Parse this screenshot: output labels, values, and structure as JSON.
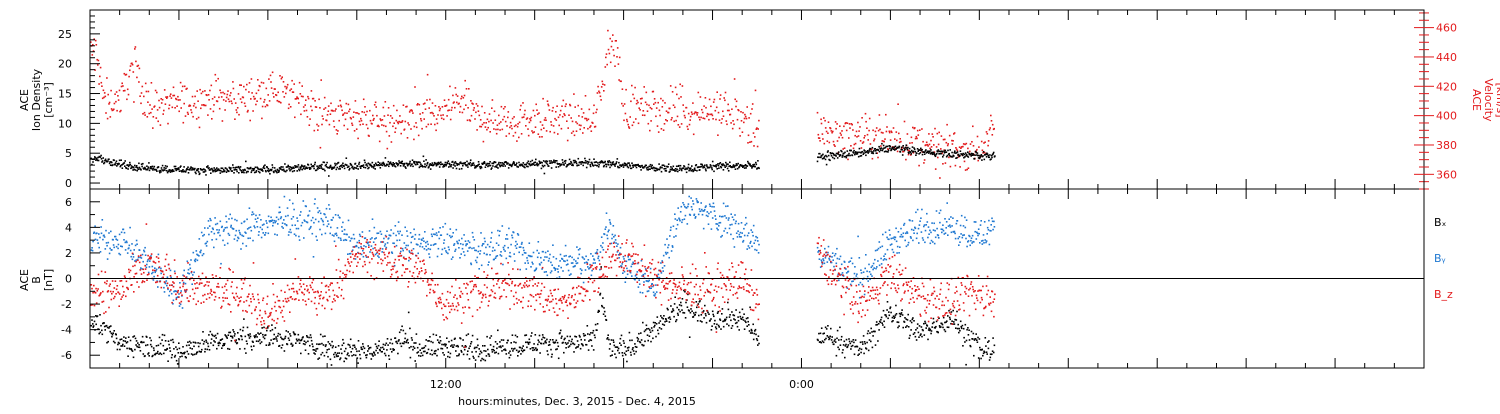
{
  "chart_data": [
    {
      "type": "scatter",
      "panel": "top",
      "ylabel_left": [
        "ACE",
        "Ion Density",
        "[cm⁻³]"
      ],
      "ylabel_right": [
        "ACE",
        "Velocity",
        "[km/s]"
      ],
      "left_axis": {
        "ylim": [
          -1,
          29
        ],
        "ticks": [
          0,
          5,
          10,
          15,
          20,
          25
        ],
        "color": "#000000"
      },
      "right_axis": {
        "ylim": [
          350,
          472
        ],
        "ticks": [
          360,
          380,
          400,
          420,
          440,
          460
        ],
        "color": "#e31a1c"
      },
      "series": [
        {
          "key": "density",
          "color": "#000000",
          "axis": "left",
          "shape": [
            [
              0,
              3.6
            ],
            [
              0.3,
              4.5
            ],
            [
              0.5,
              3.8
            ],
            [
              1,
              3.2
            ],
            [
              2,
              2.6
            ],
            [
              3,
              2.4
            ],
            [
              4,
              2.3
            ],
            [
              5,
              2.2
            ],
            [
              6,
              2.4
            ],
            [
              7,
              2.6
            ],
            [
              8,
              2.9
            ],
            [
              9,
              3.1
            ],
            [
              10,
              3.2
            ],
            [
              11,
              3.3
            ],
            [
              12,
              3.2
            ],
            [
              13,
              3.2
            ],
            [
              14,
              3.2
            ],
            [
              15,
              3.4
            ],
            [
              16,
              3.4
            ],
            [
              17,
              3.5
            ],
            [
              18,
              3.2
            ],
            [
              19,
              2.6
            ],
            [
              20,
              2.5
            ],
            [
              21,
              2.9
            ],
            [
              22,
              3.0
            ],
            [
              22.55,
              3.0
            ],
            [
              22.56,
              null
            ],
            [
              24.5,
              null
            ],
            [
              24.51,
              4.4
            ],
            [
              25,
              4.7
            ],
            [
              26,
              5.2
            ],
            [
              27,
              6.0
            ],
            [
              28,
              5.4
            ],
            [
              29,
              5.0
            ],
            [
              30,
              4.7
            ],
            [
              30.5,
              4.6
            ]
          ],
          "jitter": 0.55,
          "n": 1600
        },
        {
          "key": "velocity",
          "color": "#e31a1c",
          "axis": "right",
          "shape": [
            [
              0,
              445
            ],
            [
              0.2,
              442
            ],
            [
              0.4,
              415
            ],
            [
              0.6,
              410
            ],
            [
              1,
              412
            ],
            [
              1.3,
              430
            ],
            [
              1.5,
              435
            ],
            [
              1.7,
              420
            ],
            [
              2,
              405
            ],
            [
              3,
              410
            ],
            [
              4,
              412
            ],
            [
              5,
              412
            ],
            [
              6,
              418
            ],
            [
              7,
              414
            ],
            [
              7.5,
              404
            ],
            [
              8,
              400
            ],
            [
              9,
              401
            ],
            [
              10,
              396
            ],
            [
              11,
              397
            ],
            [
              11.5,
              400
            ],
            [
              12,
              404
            ],
            [
              12.5,
              412
            ],
            [
              13,
              398
            ],
            [
              14,
              397
            ],
            [
              15,
              398
            ],
            [
              16,
              398
            ],
            [
              17,
              398
            ],
            [
              17.5,
              448
            ],
            [
              17.8,
              440
            ],
            [
              18,
              405
            ],
            [
              19,
              405
            ],
            [
              20,
              404
            ],
            [
              21,
              405
            ],
            [
              22,
              398
            ],
            [
              22.55,
              388
            ],
            [
              22.56,
              null
            ],
            [
              24.5,
              null
            ],
            [
              24.51,
              390
            ],
            [
              25,
              389
            ],
            [
              26,
              386
            ],
            [
              27,
              386
            ],
            [
              28,
              380
            ],
            [
              29,
              378
            ],
            [
              30,
              378
            ],
            [
              30.5,
              390
            ]
          ],
          "jitter": 11,
          "n": 1300
        }
      ]
    },
    {
      "type": "scatter",
      "panel": "bottom",
      "ylabel_left": [
        "ACE",
        "B",
        "[nT]"
      ],
      "ylim": [
        -7,
        7
      ],
      "ticks": [
        -6,
        -4,
        -2,
        0,
        2,
        4,
        6
      ],
      "zero_line": true,
      "series": [
        {
          "name": "Bₓ",
          "key": "bx",
          "color": "#000000",
          "shape": [
            [
              0,
              -3
            ],
            [
              1,
              -5
            ],
            [
              2,
              -5.2
            ],
            [
              3,
              -5.6
            ],
            [
              4,
              -5
            ],
            [
              5,
              -4.5
            ],
            [
              6,
              -4.4
            ],
            [
              7,
              -4.8
            ],
            [
              8,
              -5.4
            ],
            [
              9,
              -5.6
            ],
            [
              10,
              -5.5
            ],
            [
              10.5,
              -4.5
            ],
            [
              11,
              -5.4
            ],
            [
              12,
              -5.2
            ],
            [
              13,
              -5.5
            ],
            [
              14,
              -5.2
            ],
            [
              15,
              -5.0
            ],
            [
              16,
              -5.0
            ],
            [
              17,
              -5.0
            ],
            [
              17.2,
              -1
            ],
            [
              17.5,
              -5.4
            ],
            [
              18,
              -5.5
            ],
            [
              19,
              -4.0
            ],
            [
              20,
              -2
            ],
            [
              21,
              -3
            ],
            [
              22,
              -3
            ],
            [
              22.55,
              -5
            ],
            [
              22.56,
              null
            ],
            [
              24.5,
              null
            ],
            [
              24.51,
              -4.4
            ],
            [
              25,
              -4.6
            ],
            [
              26,
              -5.5
            ],
            [
              27,
              -2.5
            ],
            [
              28,
              -4.2
            ],
            [
              29,
              -3
            ],
            [
              30,
              -5.4
            ],
            [
              30.5,
              -5.6
            ]
          ],
          "jitter": 0.8,
          "n": 1500
        },
        {
          "name": "Bᵧ",
          "key": "by",
          "color": "#1f78d1",
          "shape": [
            [
              0,
              3
            ],
            [
              1,
              3.2
            ],
            [
              2,
              1
            ],
            [
              3,
              -1
            ],
            [
              4,
              4
            ],
            [
              5,
              3.8
            ],
            [
              6,
              4.4
            ],
            [
              7,
              4.5
            ],
            [
              8,
              4.5
            ],
            [
              9,
              2.5
            ],
            [
              10,
              3
            ],
            [
              11,
              2.8
            ],
            [
              12,
              3
            ],
            [
              13,
              2.2
            ],
            [
              14,
              2.5
            ],
            [
              15,
              1.5
            ],
            [
              16,
              1.2
            ],
            [
              17,
              1.5
            ],
            [
              17.5,
              4.2
            ],
            [
              18,
              1
            ],
            [
              19,
              -0.5
            ],
            [
              20,
              5.8
            ],
            [
              21,
              5
            ],
            [
              22,
              4
            ],
            [
              22.55,
              2.5
            ],
            [
              22.56,
              null
            ],
            [
              24.5,
              null
            ],
            [
              24.51,
              2
            ],
            [
              25,
              1.5
            ],
            [
              26,
              0
            ],
            [
              27,
              3
            ],
            [
              28,
              4
            ],
            [
              29,
              4.2
            ],
            [
              30,
              3.4
            ],
            [
              30.5,
              4
            ]
          ],
          "jitter": 1.1,
          "n": 1500
        },
        {
          "name": "B_z",
          "key": "bz",
          "color": "#e31a1c",
          "shape": [
            [
              0,
              -1
            ],
            [
              1,
              -1
            ],
            [
              2,
              1
            ],
            [
              3,
              -0.5
            ],
            [
              4,
              -1
            ],
            [
              5,
              -1
            ],
            [
              6,
              -2.5
            ],
            [
              7,
              -1
            ],
            [
              8,
              -1.5
            ],
            [
              9,
              2
            ],
            [
              10,
              1.5
            ],
            [
              11,
              1
            ],
            [
              12,
              -2
            ],
            [
              13,
              -1
            ],
            [
              14,
              -0.5
            ],
            [
              15,
              -1
            ],
            [
              16,
              -2
            ],
            [
              17,
              0
            ],
            [
              17.5,
              1.5
            ],
            [
              18,
              2
            ],
            [
              19,
              0
            ],
            [
              20,
              -0.8
            ],
            [
              21,
              -1
            ],
            [
              22,
              0
            ],
            [
              22.55,
              -2
            ],
            [
              22.56,
              null
            ],
            [
              24.5,
              null
            ],
            [
              24.51,
              2.4
            ],
            [
              25,
              0.5
            ],
            [
              26,
              -2
            ],
            [
              27,
              0.5
            ],
            [
              28,
              -1.5
            ],
            [
              29,
              -2
            ],
            [
              30,
              -1
            ],
            [
              30.5,
              -2
            ]
          ],
          "jitter": 1.3,
          "n": 1500
        }
      ]
    },
    {
      "type": "axis",
      "x_unit": "hours since Dec. 3, 2015 00:00",
      "xlim": [
        0,
        45
      ],
      "minor_step": 1,
      "major_ticks": [
        12,
        24
      ],
      "major_labels": [
        "12:00",
        "0:00"
      ],
      "xlabel": "hours:minutes, Dec.  3, 2015 - Dec.  4, 2015"
    }
  ]
}
